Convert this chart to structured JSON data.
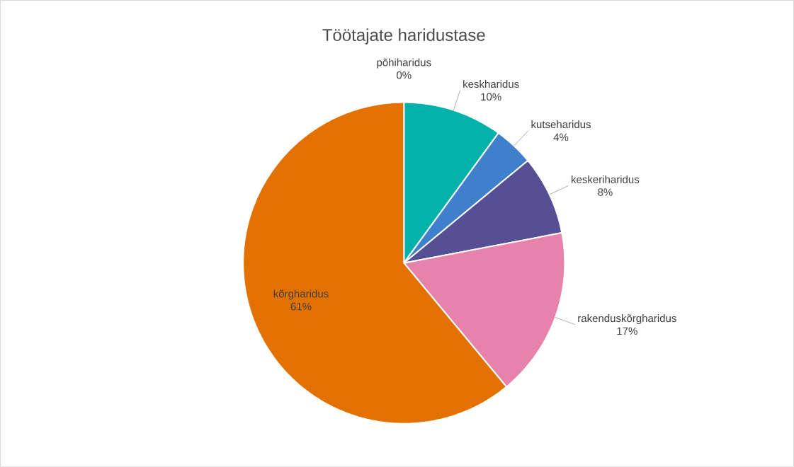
{
  "chart_data": {
    "type": "pie",
    "title": "Töötajate haridustase",
    "categories": [
      "põhiharidus",
      "keskharidus",
      "kutseharidus",
      "keskeriharidus",
      "rakenduskõrgharidus",
      "kõrgharidus"
    ],
    "values": [
      0,
      10,
      4,
      8,
      17,
      61
    ],
    "value_labels": [
      "0%",
      "10%",
      "4%",
      "8%",
      "17%",
      "61%"
    ],
    "colors": [
      "#1f3864",
      "#00b2a9",
      "#3f7fcb",
      "#574f96",
      "#e782aa",
      "#e37100"
    ]
  }
}
